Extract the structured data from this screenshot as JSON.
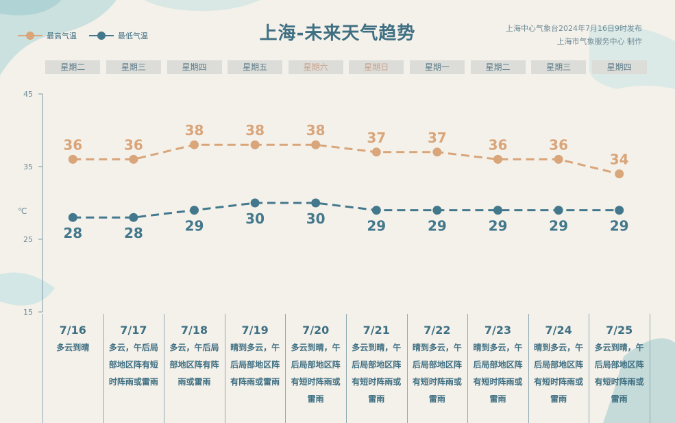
{
  "header": {
    "title": "上海-未来天气趋势",
    "publisher_line1": "上海中心气象台2024年7月16日9时发布",
    "publisher_line2": "上海市气象服务中心 制作"
  },
  "legend": {
    "high_label": "最高气温",
    "low_label": "最低气温"
  },
  "weekdays": [
    "星期二",
    "星期三",
    "星期四",
    "星期五",
    "星期六",
    "星期日",
    "星期一",
    "星期二",
    "星期三",
    "星期四"
  ],
  "days": [
    {
      "date": "7/16",
      "desc": "多云到晴"
    },
    {
      "date": "7/17",
      "desc": "多云，午后局部地区阵有短时阵雨或雷雨"
    },
    {
      "date": "7/18",
      "desc": "多云，午后局部地区阵有阵雨或雷雨"
    },
    {
      "date": "7/19",
      "desc": "晴到多云，午后局部地区阵有阵雨或雷雨"
    },
    {
      "date": "7/20",
      "desc": "多云到晴，午后局部地区阵有短时阵雨或雷雨"
    },
    {
      "date": "7/21",
      "desc": "多云到晴，午后局部地区阵有短时阵雨或雷雨"
    },
    {
      "date": "7/22",
      "desc": "晴到多云，午后局部地区阵有短时阵雨或雷雨"
    },
    {
      "date": "7/23",
      "desc": "晴到多云，午后局部地区阵有短时阵雨或雷雨"
    },
    {
      "date": "7/24",
      "desc": "晴到多云，午后局部地区阵有短时阵雨或雷雨"
    },
    {
      "date": "7/25",
      "desc": "多云到晴，午后局部地区阵有短时阵雨或雷雨"
    }
  ],
  "colors": {
    "high": "#d9a57a",
    "low": "#43788c",
    "axis": "#7d99a4"
  },
  "chart_data": {
    "type": "line",
    "x": [
      "7/16",
      "7/17",
      "7/18",
      "7/19",
      "7/20",
      "7/21",
      "7/22",
      "7/23",
      "7/24",
      "7/25"
    ],
    "series": [
      {
        "name": "最高气温",
        "values": [
          36,
          36,
          38,
          38,
          38,
          37,
          37,
          36,
          36,
          34
        ]
      },
      {
        "name": "最低气温",
        "values": [
          28,
          28,
          29,
          30,
          30,
          29,
          29,
          29,
          29,
          29
        ]
      }
    ],
    "ylabel": "℃",
    "yticks": [
      15,
      25,
      35,
      45
    ],
    "ylim": [
      15,
      45
    ],
    "grid": false,
    "legend_position": "top-left"
  }
}
